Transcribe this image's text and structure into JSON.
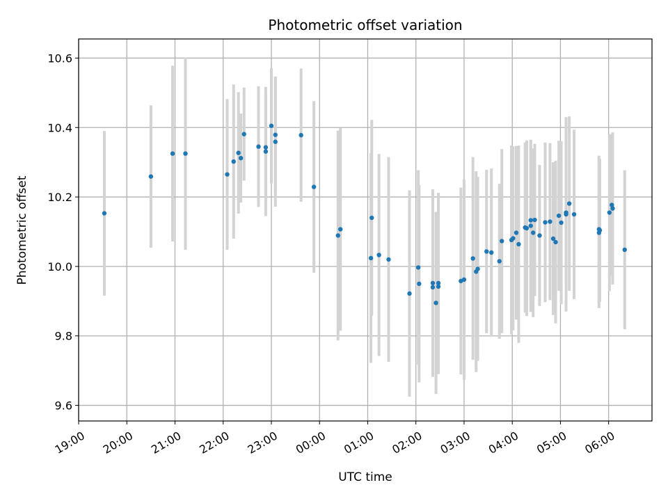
{
  "chart_data": {
    "type": "scatter",
    "title": "Photometric offset variation",
    "xlabel": "UTC time",
    "ylabel": "Photometric offset",
    "x_tick_labels": [
      "19:00",
      "20:00",
      "21:00",
      "22:00",
      "23:00",
      "00:00",
      "01:00",
      "02:00",
      "03:00",
      "04:00",
      "05:00",
      "06:00"
    ],
    "x_range_hours": [
      19.0,
      30.9
    ],
    "y_ticks": [
      "9.6",
      "9.8",
      "10.0",
      "10.2",
      "10.4",
      "10.6"
    ],
    "ylim": [
      9.555,
      10.655
    ],
    "grid": true,
    "colors": {
      "points": "#1f77b4",
      "errorbars": "#d3d3d3",
      "grid": "#b0b0b0"
    },
    "series": [
      {
        "x": [
          "19:32",
          "20:30",
          "20:57",
          "21:13",
          "22:05",
          "22:13",
          "22:19",
          "22:22",
          "22:26",
          "22:44",
          "22:53",
          "22:53",
          "23:00",
          "23:05",
          "23:05",
          "23:37",
          "23:53",
          "00:23",
          "00:26",
          "01:04",
          "01:05",
          "01:14",
          "01:26",
          "01:52",
          "02:03",
          "02:04",
          "02:21",
          "02:21",
          "02:25",
          "02:28",
          "02:28",
          "02:56",
          "03:00",
          "03:11",
          "03:15",
          "03:17",
          "03:28",
          "03:34",
          "03:44",
          "03:47",
          "03:59",
          "04:01",
          "04:05",
          "04:08",
          "04:16",
          "04:18",
          "04:23",
          "04:23",
          "04:26",
          "04:28",
          "04:34",
          "04:41",
          "04:47",
          "04:51",
          "04:54",
          "04:58",
          "05:01",
          "05:07",
          "05:07",
          "05:11",
          "05:17",
          "05:48",
          "05:48",
          "05:49",
          "06:01",
          "06:04",
          "06:05",
          "06:20"
        ],
        "y": [
          10.153,
          10.259,
          10.325,
          10.325,
          10.265,
          10.302,
          10.327,
          10.312,
          10.381,
          10.345,
          10.343,
          10.331,
          10.405,
          10.359,
          10.379,
          10.378,
          10.229,
          10.089,
          10.107,
          10.024,
          10.14,
          10.033,
          10.02,
          9.922,
          9.997,
          9.95,
          9.952,
          9.94,
          9.895,
          9.952,
          9.942,
          9.958,
          9.962,
          10.023,
          9.985,
          9.993,
          10.043,
          10.04,
          10.015,
          10.073,
          10.076,
          10.081,
          10.097,
          10.064,
          10.112,
          10.11,
          10.133,
          10.117,
          10.097,
          10.134,
          10.089,
          10.127,
          10.129,
          10.08,
          10.07,
          10.146,
          10.126,
          10.155,
          10.15,
          10.181,
          10.15,
          10.097,
          10.107,
          10.104,
          10.155,
          10.177,
          10.167,
          10.048
        ],
        "yerr": [
          0.237,
          0.205,
          0.253,
          0.277,
          0.217,
          0.222,
          0.175,
          0.128,
          0.134,
          0.174,
          0.152,
          0.186,
          0.166,
          0.187,
          0.168,
          0.192,
          0.247,
          0.302,
          0.292,
          0.302,
          0.282,
          0.291,
          0.295,
          0.297,
          0.28,
          0.284,
          0.27,
          0.253,
          0.262,
          0.26,
          0.252,
          0.269,
          0.289,
          0.292,
          0.289,
          0.265,
          0.235,
          0.242,
          0.223,
          0.265,
          0.272,
          0.265,
          0.25,
          0.284,
          0.245,
          0.253,
          0.231,
          0.248,
          0.243,
          0.219,
          0.203,
          0.23,
          0.226,
          0.22,
          0.234,
          0.216,
          0.235,
          0.205,
          0.28,
          0.251,
          0.244,
          0.217,
          0.212,
          0.205,
          0.226,
          0.204,
          0.219,
          0.229
        ]
      }
    ]
  }
}
